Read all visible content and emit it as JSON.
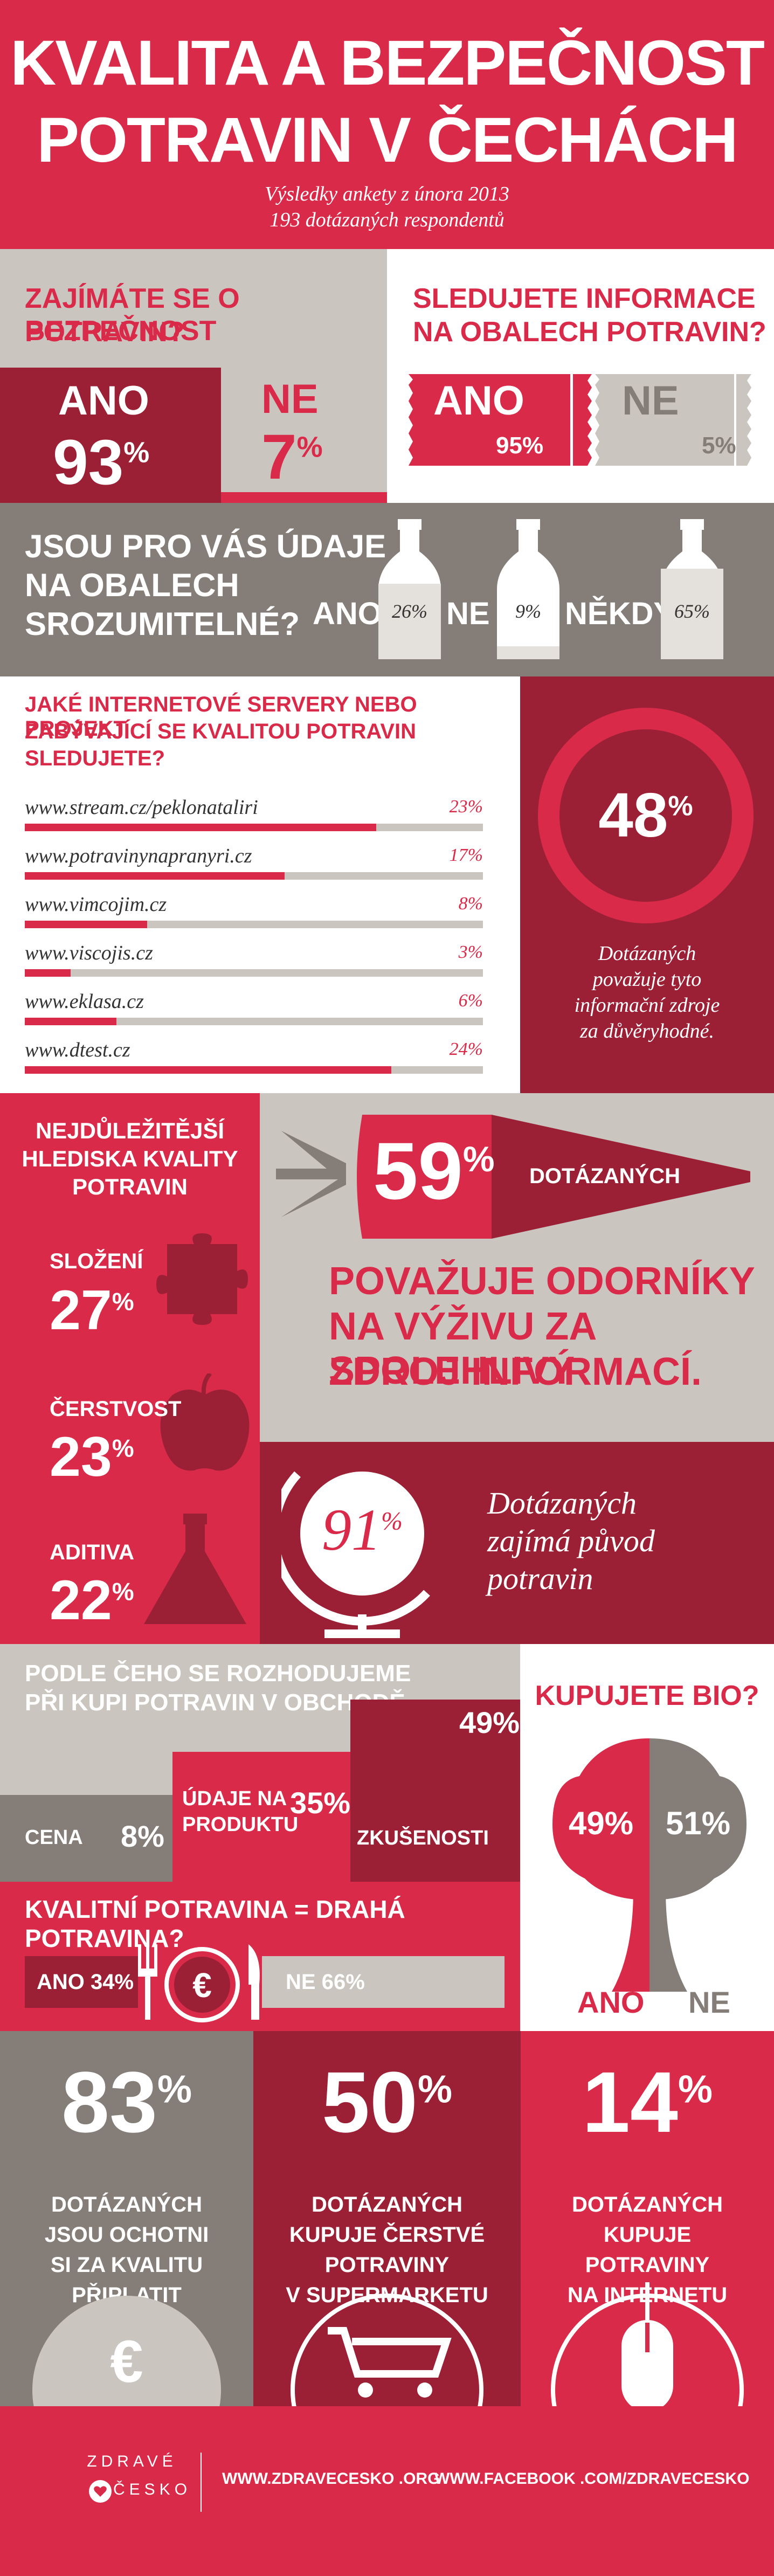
{
  "colors": {
    "red": "#d92a4a",
    "dark_red": "#9b2035",
    "grey": "#857e78",
    "light_grey": "#cbc5bf",
    "white": "#ffffff"
  },
  "header": {
    "title_line1": "KVALITA A BEZPEČNOST",
    "title_line2": "POTRAVIN V ČECHÁCH",
    "subtitle_line1": "Výsledky ankety z února 2013",
    "subtitle_line2": "193 dotázaných respondentů"
  },
  "q_interest": {
    "question_line1": "ZAJÍMÁTE SE O BEZPEČNOST",
    "question_line2": "POTRAVIN?",
    "yes_label": "ANO",
    "yes_value": "93",
    "no_label": "NE",
    "no_value": "7",
    "pct": "%"
  },
  "q_labels": {
    "question_line1": "SLEDUJETE INFORMACE",
    "question_line2": "NA OBALECH POTRAVIN?",
    "yes_label": "ANO",
    "yes_value": "95%",
    "no_label": "NE",
    "no_value": "5%"
  },
  "q_understand": {
    "question_line1": "JSOU PRO VÁS ÚDAJE",
    "question_line2": "NA OBALECH",
    "question_line3": "SROZUMITELNÉ?",
    "items": [
      {
        "label": "ANO",
        "value": "26%",
        "fill": 0.26
      },
      {
        "label": "NE",
        "value": "9%",
        "fill": 0.09
      },
      {
        "label": "NĚKDY",
        "value": "65%",
        "fill": 0.65
      }
    ]
  },
  "q_servers": {
    "question_line1": "JAKÉ INTERNETOVÉ SERVERY NEBO PROJEKT",
    "question_line2": "ZABÝVAJÍCÍ SE KVALITOU POTRAVIN",
    "question_line3": "SLEDUJETE?",
    "items": [
      {
        "site": "www.stream.cz/peklonataliri",
        "value": "23%",
        "fill": 0.23
      },
      {
        "site": "www.potravinynapranyri.cz",
        "value": "17%",
        "fill": 0.17
      },
      {
        "site": "www.vimcojim.cz",
        "value": "8%",
        "fill": 0.08
      },
      {
        "site": "www.viscojis.cz",
        "value": "3%",
        "fill": 0.03
      },
      {
        "site": "www.eklasa.cz",
        "value": "6%",
        "fill": 0.06
      },
      {
        "site": "www.dtest.cz",
        "value": "24%",
        "fill": 0.24
      }
    ],
    "trust_value": "48",
    "trust_pct": "%",
    "trust_text": [
      "Dotázaných",
      "považuje tyto",
      "informační zdroje",
      "za důvěryhodné."
    ]
  },
  "q_quality": {
    "title_line1": "NEJDŮLEŽITĚJŠÍ",
    "title_line2": "HLEDISKA KVALITY",
    "title_line3": "POTRAVIN",
    "items": [
      {
        "label": "SLOŽENÍ",
        "value": "27",
        "icon": "puzzle-icon"
      },
      {
        "label": "ČERSTVOST",
        "value": "23",
        "icon": "apple-icon"
      },
      {
        "label": "ADITIVA",
        "value": "22",
        "icon": "flask-icon"
      }
    ],
    "pct": "%"
  },
  "q_experts": {
    "value": "59",
    "pct": "%",
    "suffix": "DOTÁZANÝCH",
    "text_line1": "POVAŽUJE ODORNÍKY",
    "text_line2": "NA VÝŽIVU ZA SPOLEHLIVÝ",
    "text_line3": "ZDROJ INFORMACÍ."
  },
  "q_origin": {
    "value": "91",
    "pct": "%",
    "text": [
      "Dotázaných",
      "zajímá původ",
      "potravin"
    ]
  },
  "q_decide": {
    "title_line1": "PODLE ČEHO SE ROZHODUJEME",
    "title_line2": "PŘI KUPI POTRAVIN V OBCHODĚ",
    "items": [
      {
        "label": "CENA",
        "value": "8%",
        "fill": 0.08
      },
      {
        "label_line1": "ÚDAJE NA",
        "label_line2": "PRODUKTU",
        "value": "35%",
        "fill": 0.35
      },
      {
        "label": "ZKUŠENOSTI",
        "value": "49%",
        "fill": 0.49
      }
    ]
  },
  "q_bio": {
    "title": "KUPUJETE BIO?",
    "yes_value": "49%",
    "no_value": "51%",
    "yes_label": "ANO",
    "no_label": "NE"
  },
  "q_price": {
    "title": "KVALITNÍ POTRAVINA = DRAHÁ POTRAVINA?",
    "yes_label": "ANO",
    "yes_value": "34%",
    "no_label": "NE",
    "no_value": "66%"
  },
  "stats": [
    {
      "value": "83",
      "pct": "%",
      "lines": [
        "DOTÁZANÝCH",
        "JSOU OCHOTNI",
        "SI ZA KVALITU",
        "PŘIPLATIT"
      ],
      "icon": "euro-icon"
    },
    {
      "value": "50",
      "pct": "%",
      "lines": [
        "DOTÁZANÝCH",
        "KUPUJE ČERSTVÉ",
        "POTRAVINY",
        "V SUPERMARKETU"
      ],
      "icon": "cart-icon"
    },
    {
      "value": "14",
      "pct": "%",
      "lines": [
        "DOTÁZANÝCH",
        "KUPUJE",
        "POTRAVINY",
        "NA INTERNETU"
      ],
      "icon": "mouse-icon"
    }
  ],
  "footer": {
    "logo_line1": "ZDRAVÉ",
    "logo_line2": "ČESKO",
    "link1": "WWW.ZDRAVECESKO .ORG",
    "link2": "WWW.FACEBOOK .COM/ZDRAVECESKO"
  },
  "chart_data": [
    {
      "type": "bar",
      "title": "ZAJÍMÁTE SE O BEZPEČNOST POTRAVIN?",
      "categories": [
        "ANO",
        "NE"
      ],
      "values": [
        93,
        7
      ]
    },
    {
      "type": "bar",
      "title": "SLEDUJETE INFORMACE NA OBALECH POTRAVIN?",
      "categories": [
        "ANO",
        "NE"
      ],
      "values": [
        95,
        5
      ]
    },
    {
      "type": "bar",
      "title": "JSOU PRO VÁS ÚDAJE NA OBALECH SROZUMITELNÉ?",
      "categories": [
        "ANO",
        "NE",
        "NĚKDY"
      ],
      "values": [
        26,
        9,
        65
      ]
    },
    {
      "type": "bar",
      "title": "JAKÉ INTERNETOVÉ SERVERY NEBO PROJEKT ZABÝVAJÍCÍ SE KVALITOU POTRAVIN SLEDUJETE?",
      "categories": [
        "www.stream.cz/peklonataliri",
        "www.potravinynapranyri.cz",
        "www.vimcojim.cz",
        "www.viscojis.cz",
        "www.eklasa.cz",
        "www.dtest.cz"
      ],
      "values": [
        23,
        17,
        8,
        3,
        6,
        24
      ]
    },
    {
      "type": "bar",
      "title": "NEJDŮLEŽITĚJŠÍ HLEDISKA KVALITY POTRAVIN",
      "categories": [
        "SLOŽENÍ",
        "ČERSTVOST",
        "ADITIVA"
      ],
      "values": [
        27,
        23,
        22
      ]
    },
    {
      "type": "bar",
      "title": "PODLE ČEHO SE ROZHODUJEME PŘI KUPI POTRAVIN V OBCHODĚ",
      "categories": [
        "CENA",
        "ÚDAJE NA PRODUKTU",
        "ZKUŠENOSTI"
      ],
      "values": [
        8,
        35,
        49
      ]
    },
    {
      "type": "pie",
      "title": "KUPUJETE BIO?",
      "categories": [
        "ANO",
        "NE"
      ],
      "values": [
        49,
        51
      ]
    },
    {
      "type": "bar",
      "title": "KVALITNÍ POTRAVINA = DRAHÁ POTRAVINA?",
      "categories": [
        "ANO",
        "NE"
      ],
      "values": [
        34,
        66
      ]
    }
  ]
}
